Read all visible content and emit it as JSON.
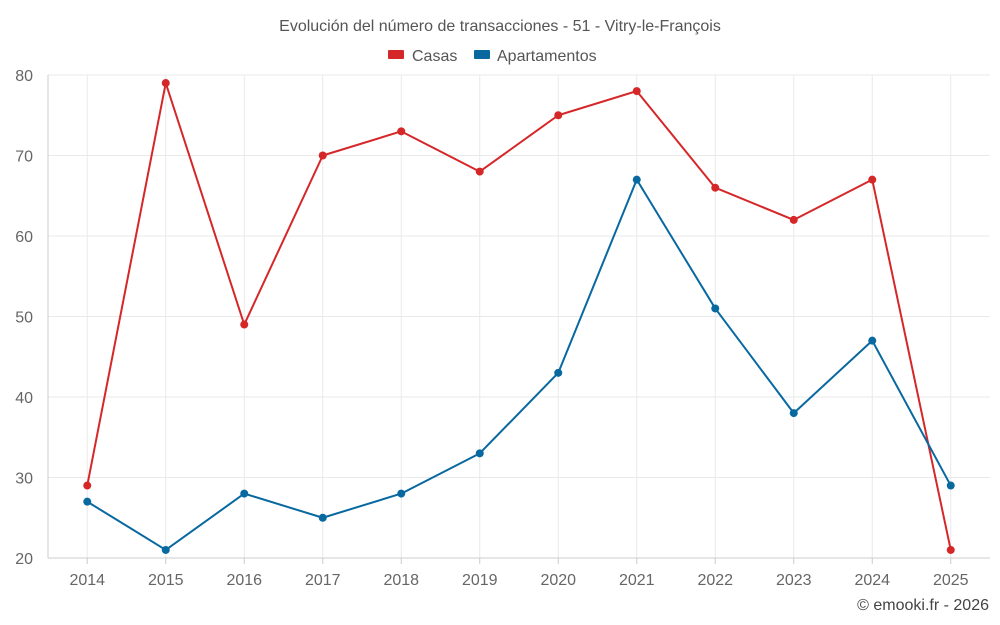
{
  "chart_data": {
    "type": "line",
    "title": "Evolución del número de transacciones - 51 - Vitry-le-François",
    "xlabel": "",
    "ylabel": "",
    "categories": [
      "2014",
      "2015",
      "2016",
      "2017",
      "2018",
      "2019",
      "2020",
      "2021",
      "2022",
      "2023",
      "2024",
      "2025"
    ],
    "ylim": [
      20,
      80
    ],
    "yticks": [
      20,
      30,
      40,
      50,
      60,
      70,
      80
    ],
    "grid": true,
    "legend_position": "top-center",
    "series": [
      {
        "name": "Casas",
        "color": "#d62728",
        "values": [
          29,
          79,
          49,
          70,
          73,
          68,
          75,
          78,
          66,
          62,
          67,
          21
        ]
      },
      {
        "name": "Apartamentos",
        "color": "#0868a0",
        "values": [
          27,
          21,
          28,
          25,
          28,
          33,
          43,
          67,
          51,
          38,
          47,
          29
        ]
      }
    ]
  },
  "credit": "© emooki.fr - 2026"
}
